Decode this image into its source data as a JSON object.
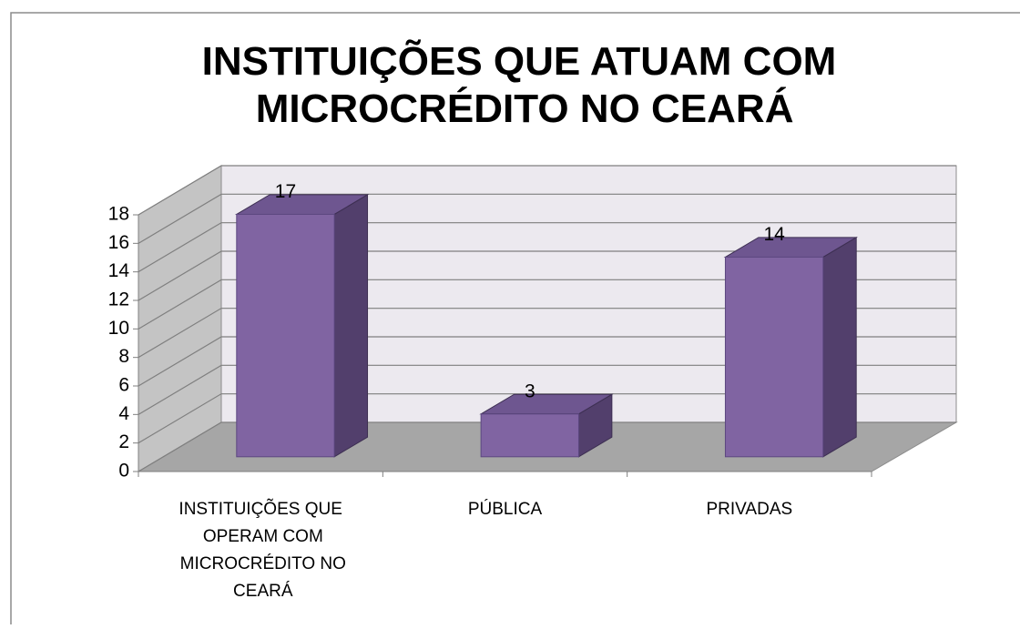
{
  "chart_data": {
    "type": "bar3d",
    "title": "INSTITUIÇÕES QUE ATUAM COM MICROCRÉDITO NO CEARÁ",
    "categories": [
      "INSTITUIÇÕES QUE OPERAM COM MICROCRÉDITO NO CEARÁ",
      "PÚBLICA",
      "PRIVADAS"
    ],
    "values": [
      17,
      3,
      14
    ],
    "color": "#8064a2",
    "ylim": [
      0,
      18
    ],
    "yticks": [
      0,
      2,
      4,
      6,
      8,
      10,
      12,
      14,
      16,
      18
    ],
    "grid": true
  }
}
